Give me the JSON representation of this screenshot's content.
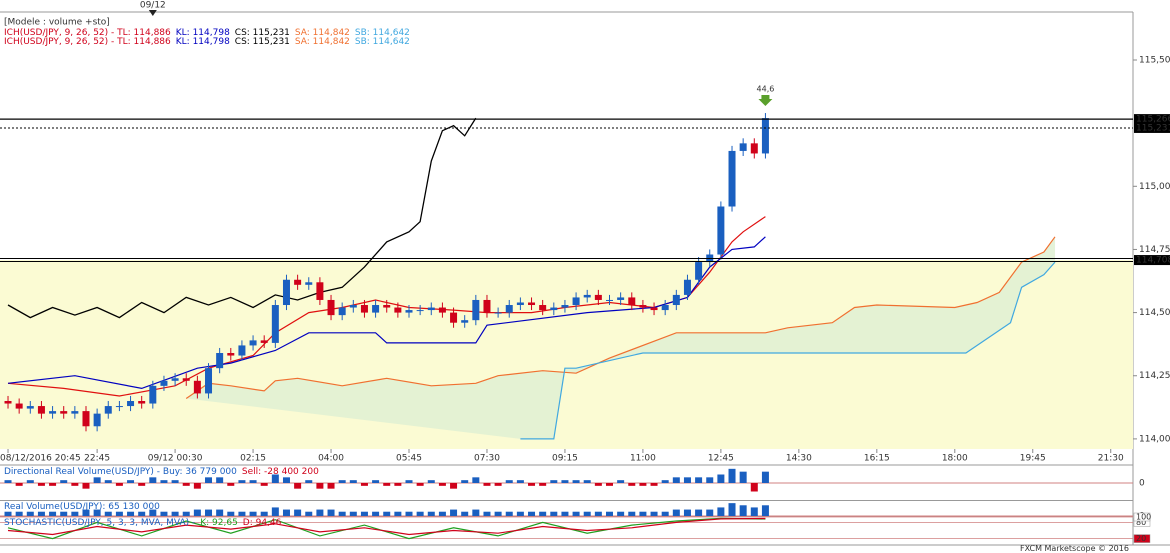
{
  "top_marker": {
    "value": 13,
    "label": "09/12"
  },
  "legend": {
    "title": "[Modele : volume +sto]",
    "lines": [
      [
        {
          "text": "ICH(USD/JPY, 9, 26, 52) -  TL: 114,886",
          "color": "#d0021b"
        },
        {
          "text": "KL: 114,798",
          "color": "#0000c0"
        },
        {
          "text": "CS: 115,231",
          "color": "#000000"
        },
        {
          "text": "SA: 114,842",
          "color": "#f07030"
        },
        {
          "text": "SB: 114,642",
          "color": "#40a8e0"
        }
      ],
      [
        {
          "text": "ICH(USD/JPY, 9, 26, 52) -  TL: 114,886",
          "color": "#d0021b"
        },
        {
          "text": "KL: 114,798",
          "color": "#0000c0"
        },
        {
          "text": "CS: 115,231",
          "color": "#000000"
        },
        {
          "text": "SA: 114,842",
          "color": "#f07030"
        },
        {
          "text": "SB: 114,642",
          "color": "#40a8e0"
        }
      ]
    ]
  },
  "footer": "FXCM Marketscope © 2016",
  "chart_data": [
    {
      "type": "candlestick",
      "xlim": [
        -0.72,
        101
      ],
      "ylim": [
        113.96,
        115.69
      ],
      "yticks": [
        {
          "value": 114,
          "label": "114,00"
        },
        {
          "value": 114.25,
          "label": "114,25"
        },
        {
          "value": 114.5,
          "label": "114,50"
        },
        {
          "value": 114.75,
          "label": "114,75"
        },
        {
          "value": 115,
          "label": "115,00"
        },
        {
          "value": 115.5,
          "label": "115,50"
        }
      ],
      "xticks": [
        {
          "value": 0,
          "label": "08/12/2016 20:45"
        },
        {
          "value": 8,
          "label": "22:45"
        },
        {
          "value": 15,
          "label": "09/12 00:30"
        },
        {
          "value": 22,
          "label": "02:15"
        },
        {
          "value": 29,
          "label": "04:00"
        },
        {
          "value": 36,
          "label": "05:45"
        },
        {
          "value": 43,
          "label": "07:30"
        },
        {
          "value": 50,
          "label": "09:15"
        },
        {
          "value": 57,
          "label": "11:00"
        },
        {
          "value": 64,
          "label": "12:45"
        },
        {
          "value": 71,
          "label": "14:30"
        },
        {
          "value": 78,
          "label": "16:15"
        },
        {
          "value": 85,
          "label": "18:00"
        },
        {
          "value": 92,
          "label": "19:45"
        },
        {
          "value": 99,
          "label": "21:30"
        }
      ],
      "up_color": "#1a5fc0",
      "down_color": "#d0021b",
      "open": [
        114.15,
        114.14,
        114.12,
        114.13,
        114.1,
        114.11,
        114.1,
        114.11,
        114.05,
        114.1,
        114.13,
        114.13,
        114.15,
        114.14,
        114.21,
        114.23,
        114.24,
        114.23,
        114.18,
        114.28,
        114.34,
        114.33,
        114.37,
        114.39,
        114.38,
        114.53,
        114.63,
        114.61,
        114.62,
        114.55,
        114.49,
        114.52,
        114.53,
        114.5,
        114.53,
        114.52,
        114.5,
        114.51,
        114.51,
        114.52,
        114.5,
        114.46,
        114.47,
        114.55,
        114.5,
        114.5,
        114.53,
        114.54,
        114.53,
        114.51,
        114.52,
        114.53,
        114.56,
        114.57,
        114.55,
        114.55,
        114.56,
        114.53,
        114.52,
        114.51,
        114.53,
        114.57,
        114.63,
        114.7,
        114.73,
        114.92,
        115.14,
        115.17,
        115.13
      ],
      "high": [
        114.17,
        114.16,
        114.15,
        114.15,
        114.13,
        114.13,
        114.13,
        114.13,
        114.12,
        114.15,
        114.15,
        114.17,
        114.17,
        114.23,
        114.25,
        114.26,
        114.26,
        114.25,
        114.3,
        114.36,
        114.36,
        114.39,
        114.41,
        114.41,
        114.55,
        114.65,
        114.65,
        114.64,
        114.64,
        114.57,
        114.54,
        114.55,
        114.55,
        114.55,
        114.55,
        114.54,
        114.53,
        114.53,
        114.54,
        114.54,
        114.52,
        114.49,
        114.57,
        114.57,
        114.52,
        114.55,
        114.56,
        114.56,
        114.55,
        114.54,
        114.55,
        114.58,
        114.59,
        114.59,
        114.57,
        114.58,
        114.58,
        114.55,
        114.54,
        114.55,
        114.59,
        114.65,
        114.72,
        114.75,
        114.94,
        115.16,
        115.19,
        115.19,
        115.29
      ],
      "low": [
        114.12,
        114.1,
        114.1,
        114.08,
        114.08,
        114.08,
        114.08,
        114.03,
        114.03,
        114.08,
        114.11,
        114.11,
        114.12,
        114.12,
        114.19,
        114.21,
        114.21,
        114.16,
        114.16,
        114.26,
        114.31,
        114.31,
        114.35,
        114.36,
        114.36,
        114.51,
        114.59,
        114.59,
        114.53,
        114.47,
        114.47,
        114.5,
        114.48,
        114.48,
        114.5,
        114.48,
        114.48,
        114.49,
        114.49,
        114.48,
        114.44,
        114.44,
        114.45,
        114.48,
        114.48,
        114.48,
        114.51,
        114.51,
        114.49,
        114.49,
        114.5,
        114.51,
        114.54,
        114.53,
        114.53,
        114.53,
        114.51,
        114.5,
        114.49,
        114.49,
        114.51,
        114.55,
        114.61,
        114.68,
        114.71,
        114.9,
        115.12,
        115.11,
        115.11
      ],
      "close": [
        114.14,
        114.12,
        114.13,
        114.1,
        114.11,
        114.1,
        114.11,
        114.05,
        114.1,
        114.13,
        114.13,
        114.15,
        114.14,
        114.21,
        114.23,
        114.24,
        114.23,
        114.18,
        114.28,
        114.34,
        114.33,
        114.37,
        114.39,
        114.38,
        114.53,
        114.63,
        114.61,
        114.62,
        114.55,
        114.49,
        114.52,
        114.53,
        114.5,
        114.53,
        114.52,
        114.5,
        114.51,
        114.51,
        114.52,
        114.5,
        114.46,
        114.47,
        114.55,
        114.5,
        114.5,
        114.53,
        114.54,
        114.53,
        114.51,
        114.52,
        114.53,
        114.56,
        114.57,
        114.55,
        114.55,
        114.56,
        114.53,
        114.52,
        114.51,
        114.53,
        114.57,
        114.63,
        114.7,
        114.73,
        114.92,
        115.14,
        115.17,
        115.13,
        115.27
      ],
      "cloud_color": "#dff0d2",
      "series": [
        {
          "color": "#000000",
          "x": [
            0,
            2,
            4,
            6,
            8,
            10,
            12,
            14,
            16,
            18,
            20,
            22,
            24,
            26,
            28,
            30,
            32,
            34,
            36,
            37,
            38,
            39,
            40,
            41,
            42
          ],
          "values": [
            114.53,
            114.48,
            114.52,
            114.49,
            114.52,
            114.48,
            114.54,
            114.5,
            114.56,
            114.53,
            114.56,
            114.52,
            114.57,
            114.55,
            114.58,
            114.6,
            114.68,
            114.78,
            114.82,
            114.86,
            115.1,
            115.22,
            115.24,
            115.2,
            115.27
          ]
        },
        {
          "color": "#e01010",
          "x": [
            0,
            5,
            10,
            15,
            18,
            22,
            24,
            27,
            30,
            33,
            36,
            40,
            43,
            47,
            50,
            54,
            58,
            61,
            63,
            65,
            66,
            68
          ],
          "values": [
            114.22,
            114.2,
            114.17,
            114.21,
            114.28,
            114.33,
            114.42,
            114.5,
            114.52,
            114.55,
            114.52,
            114.51,
            114.5,
            114.5,
            114.52,
            114.54,
            114.52,
            114.56,
            114.66,
            114.78,
            114.82,
            114.88
          ]
        },
        {
          "color": "#0000c0",
          "x": [
            0,
            6,
            12,
            17,
            20,
            24,
            27,
            33,
            34,
            42,
            43,
            52,
            58,
            61,
            63,
            65,
            67,
            68
          ],
          "values": [
            114.22,
            114.25,
            114.2,
            114.28,
            114.3,
            114.35,
            114.42,
            114.42,
            114.38,
            114.38,
            114.45,
            114.5,
            114.52,
            114.56,
            114.68,
            114.75,
            114.76,
            114.8
          ]
        },
        {
          "color": "#f07030",
          "x": [
            16,
            18,
            20,
            23,
            24,
            26,
            30,
            34,
            38,
            42,
            44,
            48,
            51,
            54,
            60,
            64,
            68,
            70,
            74,
            76,
            78,
            85,
            87,
            89,
            91,
            93,
            94
          ],
          "values": [
            114.16,
            114.22,
            114.21,
            114.19,
            114.23,
            114.24,
            114.21,
            114.24,
            114.21,
            114.22,
            114.25,
            114.27,
            114.26,
            114.32,
            114.42,
            114.42,
            114.42,
            114.44,
            114.46,
            114.52,
            114.53,
            114.52,
            114.54,
            114.58,
            114.7,
            114.74,
            114.8
          ]
        },
        {
          "color": "#40a8e0",
          "x": [
            46,
            49,
            50,
            51,
            57,
            76,
            86,
            88,
            90,
            91,
            93,
            94
          ],
          "values": [
            114.0,
            114.0,
            114.28,
            114.28,
            114.34,
            114.34,
            114.34,
            114.4,
            114.46,
            114.6,
            114.65,
            114.7
          ]
        }
      ],
      "levels": [
        {
          "value": 115.266,
          "label": "115,266",
          "style": "solid"
        },
        {
          "value": 115.231,
          "label": "115,231",
          "style": "dotted"
        },
        {
          "value": 114.708,
          "label": "114,708",
          "style": "double"
        }
      ],
      "annotation": "44,6"
    },
    {
      "type": "bar",
      "title": [
        {
          "text": "Directional Real Volume(USD/JPY) -  Buy: 36 779 000",
          "color": "#1a5fc0"
        },
        {
          "text": "Sell: -28 400 200",
          "color": "#d0021b"
        }
      ],
      "ylim": [
        -6,
        6
      ],
      "yticks": [
        0
      ],
      "up_color": "#1a5fc0",
      "down_color": "#d0021b",
      "values": [
        1,
        -1,
        1,
        -1,
        -1,
        1,
        -1,
        -2,
        2,
        1,
        -1,
        1,
        -1,
        2,
        1,
        1,
        -1,
        -2,
        2,
        2,
        -1,
        1,
        1,
        -1,
        3,
        2,
        -2,
        1,
        -2,
        -2,
        1,
        1,
        -1,
        1,
        -1,
        -1,
        1,
        -1,
        1,
        -1,
        -2,
        1,
        2,
        -1,
        -1,
        1,
        1,
        -1,
        -1,
        1,
        1,
        1,
        1,
        -1,
        -1,
        1,
        -1,
        -1,
        -1,
        1,
        2,
        2,
        2,
        2,
        3,
        5,
        4,
        -3,
        4
      ]
    },
    {
      "type": "bar",
      "title": [
        {
          "text": "Real Volume(USD/JPY): 65 130 000",
          "color": "#1a5fc0"
        }
      ],
      "ylim": [
        0,
        7
      ],
      "yticks": [
        0
      ],
      "up_color": "#1a5fc0",
      "down_color": "#d0021b",
      "values": [
        2,
        2,
        2,
        2,
        2,
        2,
        2,
        3,
        3,
        2,
        2,
        2,
        2,
        3,
        2,
        2,
        2,
        3,
        3,
        3,
        2,
        2,
        2,
        2,
        4,
        3,
        3,
        2,
        3,
        3,
        2,
        2,
        2,
        2,
        2,
        2,
        2,
        2,
        2,
        2,
        3,
        2,
        3,
        2,
        2,
        2,
        2,
        2,
        2,
        2,
        2,
        2,
        2,
        2,
        2,
        2,
        2,
        2,
        2,
        2,
        3,
        3,
        3,
        3,
        4,
        6,
        5,
        4,
        5
      ]
    },
    {
      "type": "line",
      "title": [
        {
          "text": "STOCHASTIC(USD/JPY, 5, 3, 3, MVA, MVA) -",
          "color": "#1a5fc0"
        },
        {
          "text": "K: 92,65",
          "color": "#20a020"
        },
        {
          "text": "D: 94,46",
          "color": "#d0021b"
        }
      ],
      "ylim": [
        0,
        100
      ],
      "yticks": [
        20,
        80,
        100
      ],
      "series": [
        {
          "color": "#20a020",
          "x": [
            0,
            4,
            8,
            12,
            16,
            20,
            24,
            28,
            32,
            36,
            40,
            44,
            48,
            52,
            56,
            60,
            64,
            68
          ],
          "values": [
            60,
            20,
            80,
            30,
            85,
            40,
            90,
            30,
            70,
            20,
            60,
            30,
            80,
            40,
            70,
            85,
            95,
            92.65
          ]
        },
        {
          "color": "#d0021b",
          "x": [
            0,
            4,
            8,
            12,
            16,
            20,
            24,
            28,
            32,
            36,
            40,
            44,
            48,
            52,
            56,
            60,
            64,
            68
          ],
          "values": [
            50,
            35,
            65,
            45,
            70,
            55,
            75,
            45,
            60,
            35,
            50,
            40,
            65,
            50,
            60,
            80,
            93,
            94.46
          ]
        }
      ]
    }
  ]
}
